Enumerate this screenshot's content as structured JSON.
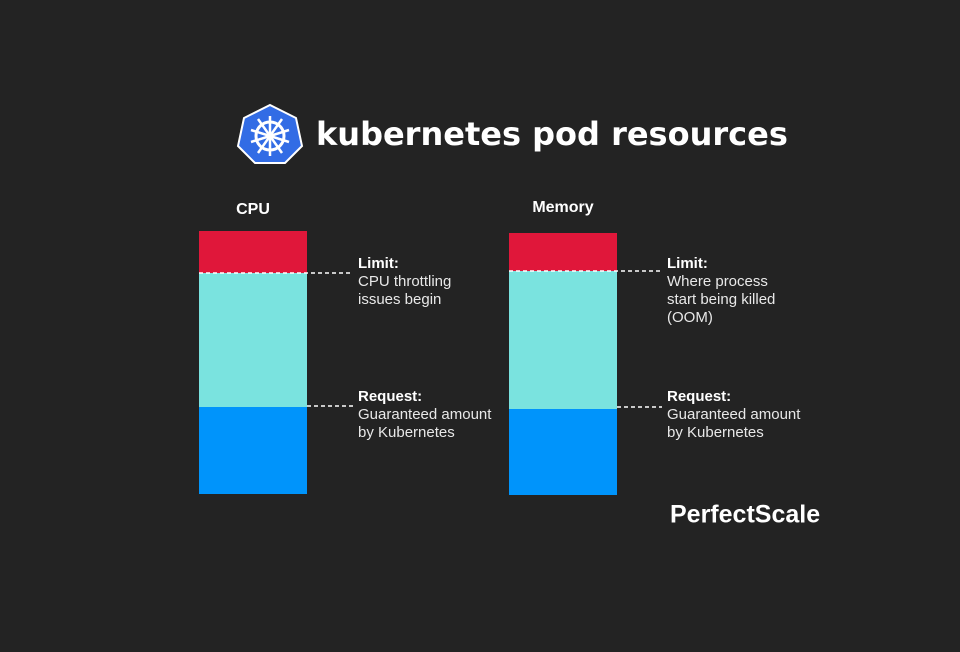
{
  "header": {
    "title": "kubernetes pod resources"
  },
  "columns": [
    {
      "heading": "CPU",
      "limit": {
        "label": "Limit:",
        "lines": [
          "CPU throttling",
          "issues begin"
        ]
      },
      "request": {
        "label": "Request:",
        "lines": [
          "Guaranteed amount",
          "by Kubernetes"
        ]
      }
    },
    {
      "heading": "Memory",
      "limit": {
        "label": "Limit:",
        "lines": [
          "Where process",
          "start being killed",
          "(OOM)"
        ]
      },
      "request": {
        "label": "Request:",
        "lines": [
          "Guaranteed amount",
          "by Kubernetes"
        ]
      }
    }
  ],
  "brand": "PerfectScale"
}
